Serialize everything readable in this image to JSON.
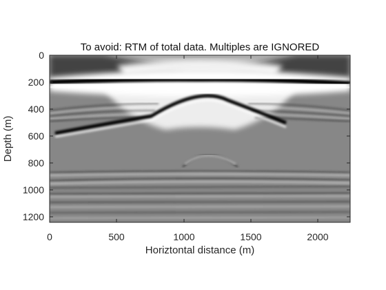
{
  "figure": {
    "title": "To avoid: RTM of total data. Multiples are IGNORED",
    "xlabel": "Horiztontal distance (m)",
    "ylabel": "Depth (m)",
    "xticks": [
      "0",
      "500",
      "1000",
      "1500",
      "2000"
    ],
    "yticks": [
      "0",
      "200",
      "400",
      "600",
      "800",
      "1000",
      "1200"
    ],
    "colormap": "gray",
    "xlim": [
      0,
      2240
    ],
    "ylim": [
      0,
      1260
    ],
    "y_direction": "reversed"
  }
}
